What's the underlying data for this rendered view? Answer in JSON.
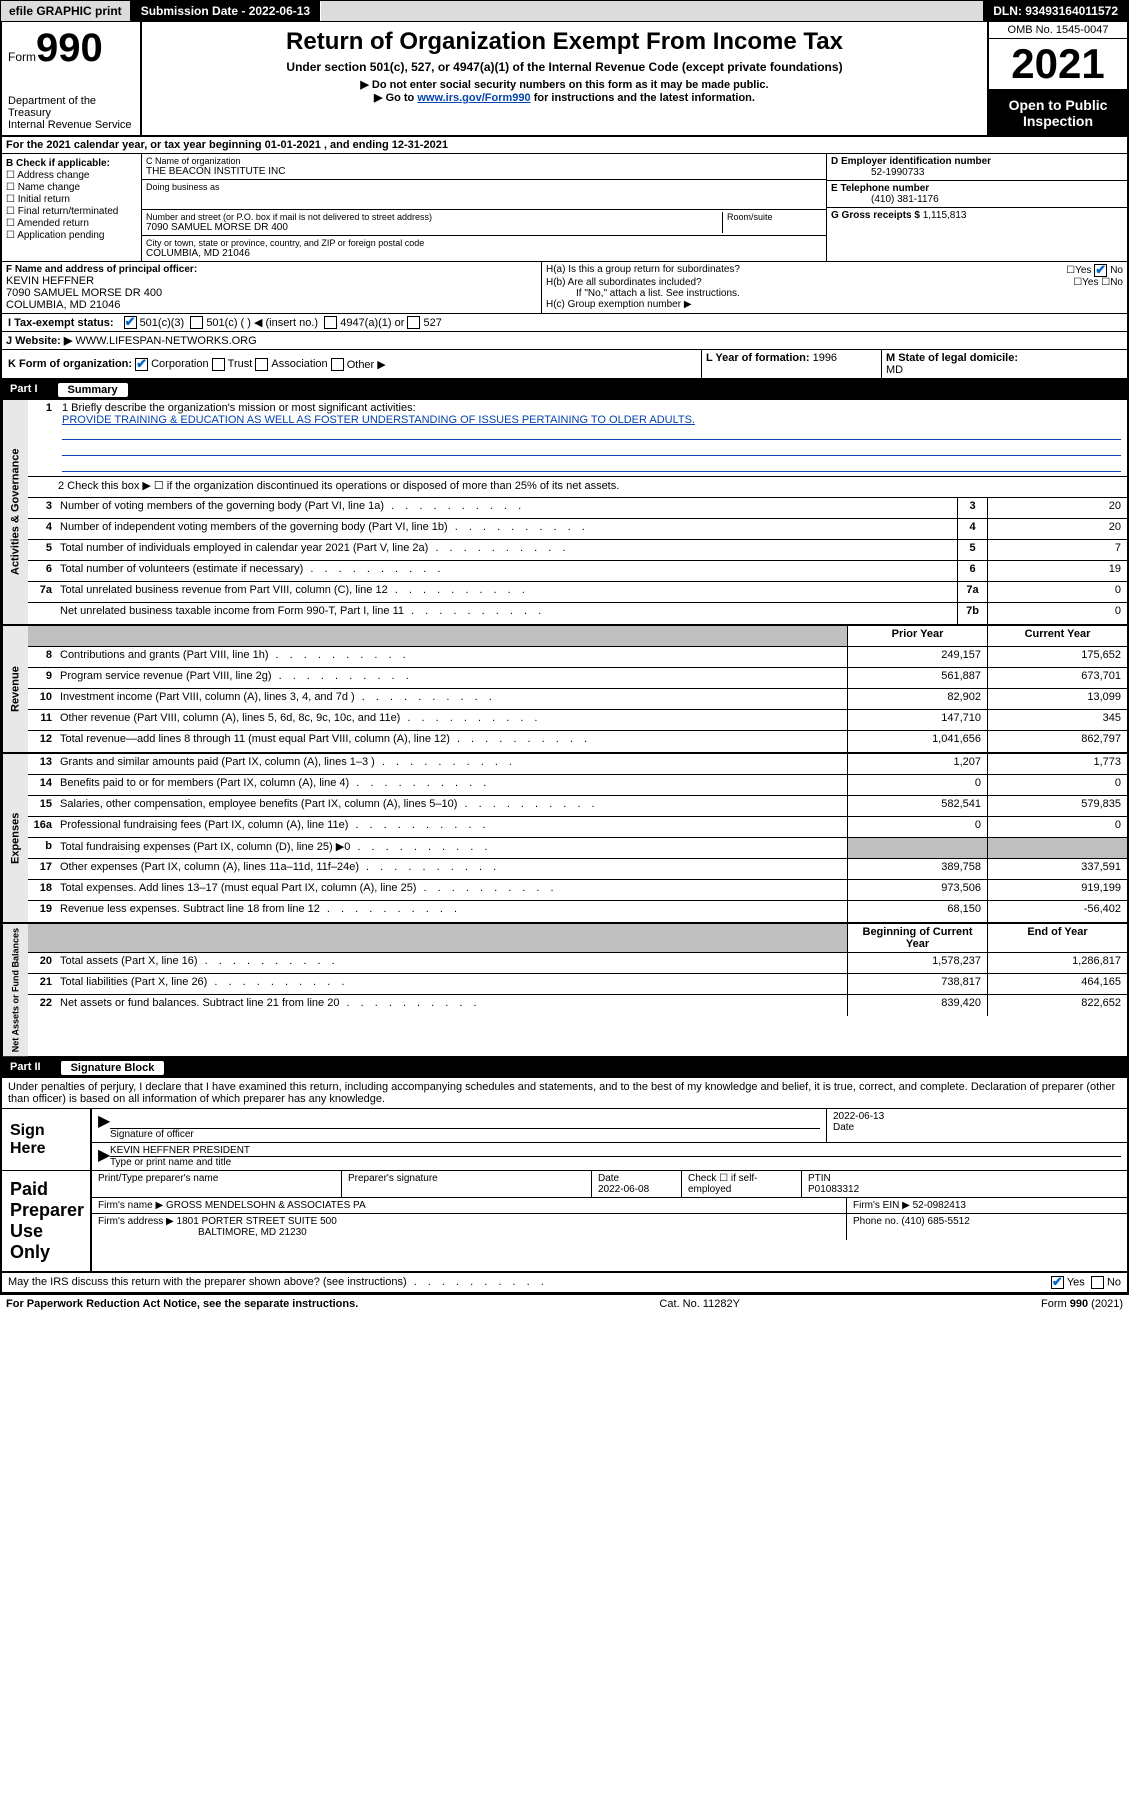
{
  "topbar": {
    "efile": "efile GRAPHIC print",
    "sub_label": "Submission Date - 2022-06-13",
    "dln": "DLN: 93493164011572"
  },
  "header": {
    "form_word": "Form",
    "form_no": "990",
    "dept": "Department of the Treasury\nInternal Revenue Service",
    "title": "Return of Organization Exempt From Income Tax",
    "subtitle": "Under section 501(c), 527, or 4947(a)(1) of the Internal Revenue Code (except private foundations)",
    "arrow1": "▶ Do not enter social security numbers on this form as it may be made public.",
    "arrow2_pre": "▶ Go to ",
    "arrow2_link": "www.irs.gov/Form990",
    "arrow2_post": " for instructions and the latest information.",
    "omb": "OMB No. 1545-0047",
    "year": "2021",
    "open": "Open to Public Inspection"
  },
  "lineA": "For the 2021 calendar year, or tax year beginning 01-01-2021   , and ending 12-31-2021",
  "boxB": {
    "label": "B Check if applicable:",
    "opts": [
      "Address change",
      "Name change",
      "Initial return",
      "Final return/terminated",
      "Amended return",
      "Application pending"
    ]
  },
  "boxC": {
    "name_lbl": "C Name of organization",
    "name": "THE BEACON INSTITUTE INC",
    "dba_lbl": "Doing business as",
    "addr_lbl": "Number and street (or P.O. box if mail is not delivered to street address)",
    "room_lbl": "Room/suite",
    "addr": "7090 SAMUEL MORSE DR 400",
    "city_lbl": "City or town, state or province, country, and ZIP or foreign postal code",
    "city": "COLUMBIA, MD  21046"
  },
  "boxD": {
    "lbl": "D Employer identification number",
    "val": "52-1990733"
  },
  "boxE": {
    "lbl": "E Telephone number",
    "val": "(410) 381-1176"
  },
  "boxG": {
    "lbl": "G Gross receipts $",
    "val": "1,115,813"
  },
  "boxF": {
    "lbl": "F Name and address of principal officer:",
    "name": "KEVIN HEFFNER",
    "addr1": "7090 SAMUEL MORSE DR 400",
    "addr2": "COLUMBIA, MD  21046"
  },
  "boxH": {
    "a": "H(a)  Is this a group return for subordinates?",
    "b": "H(b)  Are all subordinates included?",
    "b_note": "If \"No,\" attach a list. See instructions.",
    "c": "H(c)  Group exemption number ▶"
  },
  "boxI": {
    "lbl": "I   Tax-exempt status:",
    "o1": "501(c)(3)",
    "o2": "501(c) (  ) ◀ (insert no.)",
    "o3": "4947(a)(1) or",
    "o4": "527"
  },
  "boxJ": {
    "lbl": "J   Website: ▶",
    "val": "WWW.LIFESPAN-NETWORKS.ORG"
  },
  "boxK": {
    "lbl": "K Form of organization:",
    "o1": "Corporation",
    "o2": "Trust",
    "o3": "Association",
    "o4": "Other ▶"
  },
  "boxL": {
    "lbl": "L Year of formation:",
    "val": "1996"
  },
  "boxM": {
    "lbl": "M State of legal domicile:",
    "val": "MD"
  },
  "part1": {
    "num": "Part I",
    "title": "Summary",
    "line1_lbl": "1  Briefly describe the organization's mission or most significant activities:",
    "line1_val": "PROVIDE TRAINING & EDUCATION AS WELL AS FOSTER UNDERSTANDING OF ISSUES PERTAINING TO OLDER ADULTS.",
    "line2": "2   Check this box ▶ ☐  if the organization discontinued its operations or disposed of more than 25% of its net assets.",
    "vlabels": {
      "gov": "Activities & Governance",
      "rev": "Revenue",
      "exp": "Expenses",
      "net": "Net Assets or Fund Balances"
    },
    "col_prior": "Prior Year",
    "col_curr": "Current Year",
    "col_beg": "Beginning of Current Year",
    "col_end": "End of Year",
    "rows_gov": [
      {
        "n": "3",
        "d": "Number of voting members of the governing body (Part VI, line 1a)",
        "b": "3",
        "v": "20"
      },
      {
        "n": "4",
        "d": "Number of independent voting members of the governing body (Part VI, line 1b)",
        "b": "4",
        "v": "20"
      },
      {
        "n": "5",
        "d": "Total number of individuals employed in calendar year 2021 (Part V, line 2a)",
        "b": "5",
        "v": "7"
      },
      {
        "n": "6",
        "d": "Total number of volunteers (estimate if necessary)",
        "b": "6",
        "v": "19"
      },
      {
        "n": "7a",
        "d": "Total unrelated business revenue from Part VIII, column (C), line 12",
        "b": "7a",
        "v": "0"
      },
      {
        "n": "",
        "d": "Net unrelated business taxable income from Form 990-T, Part I, line 11",
        "b": "7b",
        "v": "0"
      }
    ],
    "rows_rev": [
      {
        "n": "8",
        "d": "Contributions and grants (Part VIII, line 1h)",
        "p": "249,157",
        "c": "175,652"
      },
      {
        "n": "9",
        "d": "Program service revenue (Part VIII, line 2g)",
        "p": "561,887",
        "c": "673,701"
      },
      {
        "n": "10",
        "d": "Investment income (Part VIII, column (A), lines 3, 4, and 7d )",
        "p": "82,902",
        "c": "13,099"
      },
      {
        "n": "11",
        "d": "Other revenue (Part VIII, column (A), lines 5, 6d, 8c, 9c, 10c, and 11e)",
        "p": "147,710",
        "c": "345"
      },
      {
        "n": "12",
        "d": "Total revenue—add lines 8 through 11 (must equal Part VIII, column (A), line 12)",
        "p": "1,041,656",
        "c": "862,797"
      }
    ],
    "rows_exp": [
      {
        "n": "13",
        "d": "Grants and similar amounts paid (Part IX, column (A), lines 1–3 )",
        "p": "1,207",
        "c": "1,773"
      },
      {
        "n": "14",
        "d": "Benefits paid to or for members (Part IX, column (A), line 4)",
        "p": "0",
        "c": "0"
      },
      {
        "n": "15",
        "d": "Salaries, other compensation, employee benefits (Part IX, column (A), lines 5–10)",
        "p": "582,541",
        "c": "579,835"
      },
      {
        "n": "16a",
        "d": "Professional fundraising fees (Part IX, column (A), line 11e)",
        "p": "0",
        "c": "0"
      },
      {
        "n": "b",
        "d": "Total fundraising expenses (Part IX, column (D), line 25) ▶0",
        "p": "",
        "c": "",
        "shade": true
      },
      {
        "n": "17",
        "d": "Other expenses (Part IX, column (A), lines 11a–11d, 11f–24e)",
        "p": "389,758",
        "c": "337,591"
      },
      {
        "n": "18",
        "d": "Total expenses. Add lines 13–17 (must equal Part IX, column (A), line 25)",
        "p": "973,506",
        "c": "919,199"
      },
      {
        "n": "19",
        "d": "Revenue less expenses. Subtract line 18 from line 12",
        "p": "68,150",
        "c": "-56,402"
      }
    ],
    "rows_net": [
      {
        "n": "20",
        "d": "Total assets (Part X, line 16)",
        "p": "1,578,237",
        "c": "1,286,817"
      },
      {
        "n": "21",
        "d": "Total liabilities (Part X, line 26)",
        "p": "738,817",
        "c": "464,165"
      },
      {
        "n": "22",
        "d": "Net assets or fund balances. Subtract line 21 from line 20",
        "p": "839,420",
        "c": "822,652"
      }
    ]
  },
  "part2": {
    "num": "Part II",
    "title": "Signature Block",
    "decl": "Under penalties of perjury, I declare that I have examined this return, including accompanying schedules and statements, and to the best of my knowledge and belief, it is true, correct, and complete. Declaration of preparer (other than officer) is based on all information of which preparer has any knowledge."
  },
  "sign": {
    "here": "Sign Here",
    "sig_officer": "Signature of officer",
    "date_lbl": "Date",
    "date": "2022-06-13",
    "name": "KEVIN HEFFNER  PRESIDENT",
    "name_lbl": "Type or print name and title"
  },
  "paid": {
    "lbl": "Paid Preparer Use Only",
    "h1": "Print/Type preparer's name",
    "h2": "Preparer's signature",
    "h3": "Date",
    "date": "2022-06-08",
    "h4": "Check ☐ if self-employed",
    "h5": "PTIN",
    "ptin": "P01083312",
    "firm_name_lbl": "Firm's name    ▶",
    "firm_name": "GROSS MENDELSOHN & ASSOCIATES PA",
    "firm_ein_lbl": "Firm's EIN ▶",
    "firm_ein": "52-0982413",
    "firm_addr_lbl": "Firm's address ▶",
    "firm_addr1": "1801 PORTER STREET SUITE 500",
    "firm_addr2": "BALTIMORE, MD  21230",
    "phone_lbl": "Phone no.",
    "phone": "(410) 685-5512"
  },
  "bottom": {
    "q": "May the IRS discuss this return with the preparer shown above? (see instructions)",
    "yes": "Yes",
    "no": "No"
  },
  "footer": {
    "left": "For Paperwork Reduction Act Notice, see the separate instructions.",
    "mid": "Cat. No. 11282Y",
    "right_pre": "Form ",
    "right_b": "990",
    "right_post": " (2021)"
  }
}
